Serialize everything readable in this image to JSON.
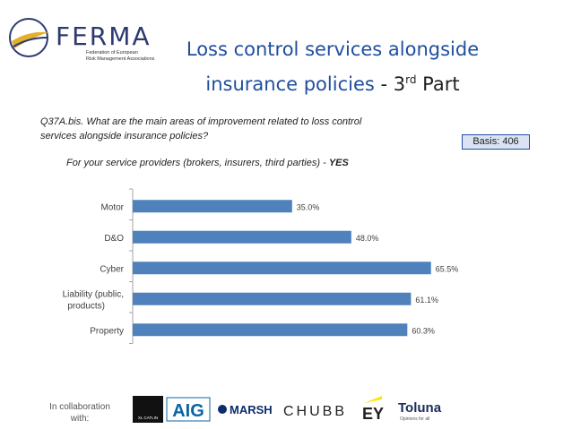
{
  "header": {
    "logo_word": "FERMA",
    "logo_sub1": "Federation of European",
    "logo_sub2": "Risk Management Associations",
    "title_line1": "Loss control services alongside",
    "title_line2": "insurance policies",
    "title_sep": " - ",
    "title_part_num": "3",
    "title_part_sup": "rd",
    "title_part_word": " Part"
  },
  "question": {
    "line1": "Q37A.bis. What are the main areas of improvement related to loss control",
    "line2": "services alongside insurance policies?"
  },
  "basis": "Basis: 406",
  "subtitle": {
    "prefix": "For your service providers (brokers, insurers, third parties) - ",
    "emph": "YES"
  },
  "chart_data": {
    "type": "bar",
    "orientation": "horizontal",
    "categories": [
      "Motor",
      "D&O",
      "Cyber",
      "Liability (public, products)",
      "Property"
    ],
    "category_lines": [
      [
        "Motor"
      ],
      [
        "D&O"
      ],
      [
        "Cyber"
      ],
      [
        "Liability (public,",
        "products)"
      ],
      [
        "Property"
      ]
    ],
    "values": [
      35.0,
      48.0,
      65.5,
      61.1,
      60.3
    ],
    "value_labels": [
      "35.0%",
      "48.0%",
      "65.5%",
      "61.1%",
      "60.3%"
    ],
    "xlim": [
      0,
      100
    ],
    "bar_color": "#4f81bd",
    "grid": false
  },
  "footer": {
    "collab_line1": "In collaboration",
    "collab_line2": "with:",
    "sponsors": [
      "XL CATLIN",
      "AIG",
      "MARSH",
      "CHUBB",
      "EY",
      "Toluna",
      "Opinions for all"
    ]
  },
  "colors": {
    "title_blue": "#1f4e9e",
    "logo_navy": "#2d3a6e",
    "logo_gold": "#e1b12c"
  }
}
